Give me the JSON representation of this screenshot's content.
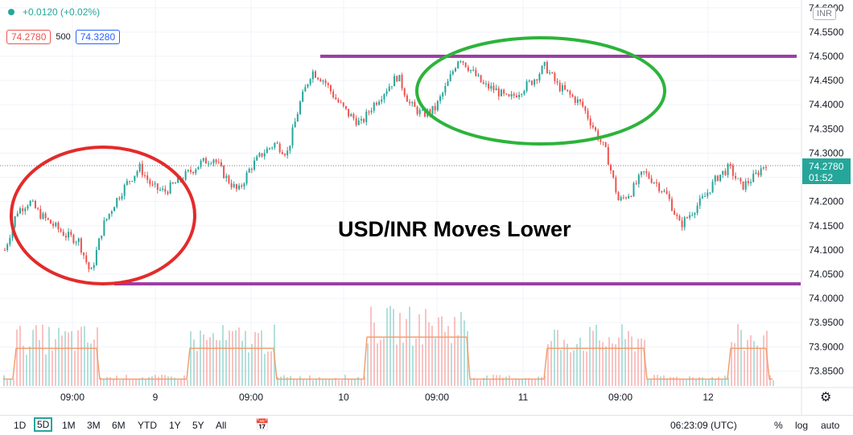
{
  "header": {
    "change": "+0.0120 (+0.02%)",
    "sell_price": "74.2780",
    "spread": "500",
    "buy_price": "74.3280",
    "currency": "INR"
  },
  "annotation": "USD/INR Moves Lower",
  "timeframes": [
    "1D",
    "5D",
    "1M",
    "3M",
    "6M",
    "YTD",
    "1Y",
    "5Y",
    "All"
  ],
  "active_timeframe": "5D",
  "clock": "06:23:09 (UTC)",
  "scale_buttons": {
    "percent": "%",
    "log": "log",
    "auto": "auto"
  },
  "colors": {
    "up": "#26a69a",
    "down": "#ef5350",
    "purple": "#9c3fa4",
    "green_circle": "#2db33b",
    "red_circle": "#e32b2b",
    "volume_ma": "#f0a070"
  },
  "chart_data": {
    "type": "candlestick",
    "y_axis": {
      "ticks": [
        "74.6000",
        "74.5500",
        "74.5000",
        "74.4500",
        "74.4000",
        "74.3500",
        "74.3000",
        "74.2500",
        "74.2000",
        "74.1500",
        "74.1000",
        "74.0500",
        "74.0000",
        "73.9500",
        "73.9000",
        "73.8500"
      ],
      "range": [
        73.82,
        74.62
      ]
    },
    "x_axis": {
      "ticks": [
        "09:00",
        "9",
        "09:00",
        "10",
        "09:00",
        "11",
        "09:00",
        "12"
      ]
    },
    "last_price": "74.2780",
    "countdown": "01:52",
    "resistance": 74.5,
    "support": 74.035,
    "price_path": [
      74.1,
      74.18,
      74.2,
      74.17,
      74.15,
      74.13,
      74.12,
      74.05,
      74.15,
      74.2,
      74.24,
      74.27,
      74.23,
      74.22,
      74.24,
      74.26,
      74.28,
      74.29,
      74.25,
      74.22,
      74.27,
      74.3,
      74.32,
      74.3,
      74.4,
      74.47,
      74.45,
      74.41,
      74.38,
      74.36,
      74.4,
      74.43,
      74.46,
      74.4,
      74.38,
      74.39,
      74.44,
      74.5,
      74.47,
      74.44,
      74.43,
      74.41,
      74.43,
      74.45,
      74.48,
      74.44,
      74.42,
      74.4,
      74.35,
      74.3,
      74.2,
      74.22,
      74.26,
      74.24,
      74.21,
      74.15,
      74.18,
      74.21,
      74.25,
      74.27,
      74.23,
      74.25,
      74.28
    ]
  }
}
